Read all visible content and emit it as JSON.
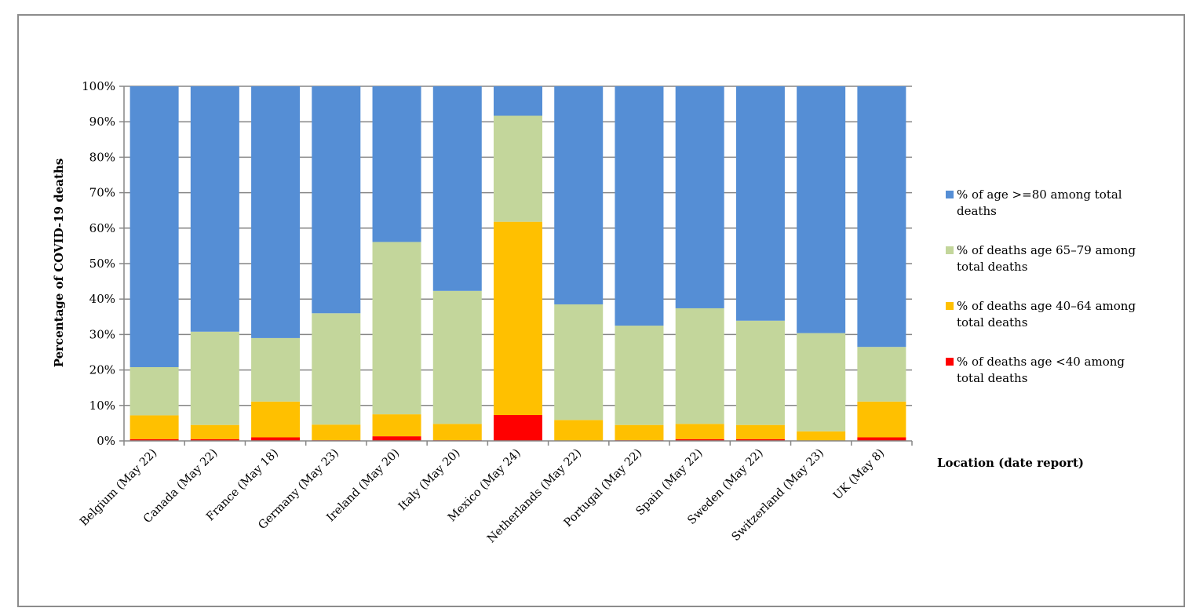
{
  "chart_data": {
    "type": "bar",
    "stacked": true,
    "percent_stacked": true,
    "categories": [
      "Belgium (May 22)",
      "Canada (May 22)",
      "France (May 18)",
      "Germany (May 23)",
      "Ireland (May 20)",
      "Italy (May 20)",
      "Mexico (May 24)",
      "Netherlands (May 22)",
      "Portugal (May 22)",
      "Spain (May 22)",
      "Sweden (May 22)",
      "Switzerland (May 23)",
      "UK (May 8)"
    ],
    "series": [
      {
        "name": "% of deaths age <40 among total deaths",
        "color": "#ff0000",
        "values": [
          0.5,
          0.5,
          1.0,
          0.2,
          1.3,
          0.2,
          7.3,
          0.1,
          0.2,
          0.5,
          0.5,
          0.1,
          1.0
        ]
      },
      {
        "name": "% of deaths age 40–64 among total deaths",
        "color": "#ffc000",
        "values": [
          6.7,
          4.0,
          10.1,
          4.4,
          6.2,
          4.6,
          54.5,
          5.8,
          4.3,
          4.3,
          4.0,
          2.6,
          10.1
        ]
      },
      {
        "name": "% of deaths age 65–79 among total deaths",
        "color": "#c3d69b",
        "values": [
          13.6,
          26.3,
          17.9,
          31.4,
          48.6,
          37.5,
          29.9,
          32.6,
          28.0,
          32.6,
          29.4,
          27.7,
          15.4
        ]
      },
      {
        "name": "% of age >=80 among total deaths",
        "color": "#558ed5",
        "values": [
          79.2,
          69.2,
          71.0,
          64.0,
          43.9,
          57.7,
          8.3,
          61.5,
          67.5,
          62.6,
          66.1,
          69.6,
          73.5
        ]
      }
    ],
    "legend_order": [
      3,
      2,
      1,
      0
    ],
    "ylabel": "Percentage of COVID-19 deaths",
    "xlabel": "Location (date report)",
    "ylim": [
      0,
      100
    ],
    "yticks": [
      "0%",
      "10%",
      "20%",
      "30%",
      "40%",
      "50%",
      "60%",
      "70%",
      "80%",
      "90%",
      "100%"
    ],
    "grid": true,
    "legend_position": "right"
  }
}
